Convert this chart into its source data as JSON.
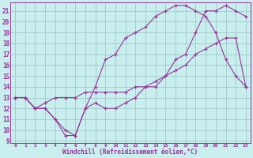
{
  "bg_color": "#c8eeed",
  "grid_color": "#a0c8c8",
  "line_color": "#993399",
  "marker": "+",
  "xlabel": "Windchill (Refroidissement éolien,°C)",
  "ylabel_ticks": [
    9,
    10,
    11,
    12,
    13,
    14,
    15,
    16,
    17,
    18,
    19,
    20,
    21
  ],
  "xlabel_ticks": [
    0,
    1,
    2,
    3,
    4,
    5,
    6,
    7,
    8,
    9,
    10,
    11,
    12,
    13,
    14,
    15,
    16,
    17,
    18,
    19,
    20,
    21,
    22,
    23
  ],
  "xlim": [
    -0.5,
    23.5
  ],
  "ylim": [
    8.8,
    21.8
  ],
  "series": [
    {
      "x": [
        0,
        1,
        2,
        3,
        4,
        5,
        6,
        7,
        8,
        9,
        10,
        11,
        12,
        13,
        14,
        15,
        16,
        17,
        18,
        19,
        20,
        21,
        22,
        23
      ],
      "y": [
        13,
        13,
        12,
        12,
        11,
        9.5,
        9.5,
        12,
        12.5,
        12,
        12,
        12.5,
        13,
        14,
        14,
        15,
        16.5,
        17,
        19,
        21,
        21,
        21.5,
        21,
        20.5
      ]
    },
    {
      "x": [
        0,
        1,
        2,
        3,
        4,
        5,
        6,
        7,
        8,
        9,
        10,
        11,
        12,
        13,
        14,
        15,
        16,
        17,
        18,
        19,
        20,
        21,
        22,
        23
      ],
      "y": [
        13,
        13,
        12,
        12,
        11,
        10,
        9.5,
        12,
        14,
        16.5,
        17,
        18.5,
        19,
        19.5,
        20.5,
        21,
        21.5,
        21.5,
        21,
        20.5,
        19,
        16.5,
        15,
        14
      ]
    },
    {
      "x": [
        0,
        1,
        2,
        3,
        4,
        5,
        6,
        7,
        8,
        9,
        10,
        11,
        12,
        13,
        14,
        15,
        16,
        17,
        18,
        19,
        20,
        21,
        22,
        23
      ],
      "y": [
        13,
        13,
        12,
        12.5,
        13,
        13,
        13,
        13.5,
        13.5,
        13.5,
        13.5,
        13.5,
        14,
        14,
        14.5,
        15,
        15.5,
        16,
        17,
        17.5,
        18,
        18.5,
        18.5,
        14
      ]
    }
  ]
}
